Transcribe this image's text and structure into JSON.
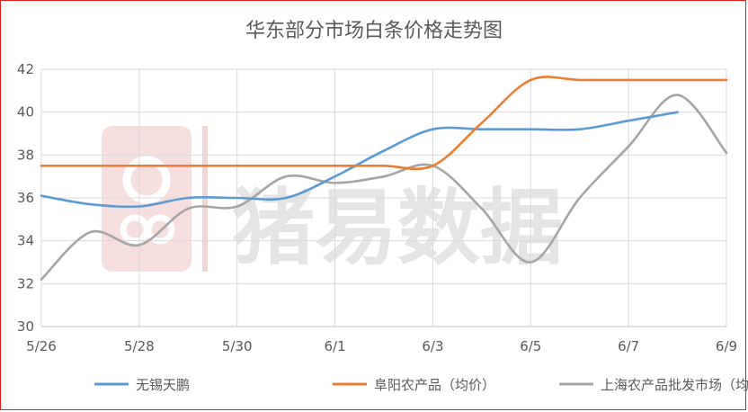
{
  "chart_data": {
    "type": "line",
    "title": "华东部分市场白条价格走势图",
    "xlabel": "",
    "ylabel": "",
    "watermark": "猪易数据",
    "x_ticks": [
      "5/26",
      "5/28",
      "5/30",
      "6/1",
      "6/3",
      "6/5",
      "6/7",
      "6/9"
    ],
    "y_ticks": [
      "30",
      "32",
      "34",
      "36",
      "38",
      "40",
      "42"
    ],
    "ylim": [
      30,
      42
    ],
    "grid": "horizontal",
    "legend_position": "bottom",
    "series": [
      {
        "name": "无锡天鹏",
        "color": "#5b9bd5",
        "x": [
          "5/26",
          "5/27",
          "5/28",
          "5/29",
          "5/30",
          "5/31",
          "6/1",
          "6/2",
          "6/3",
          "6/4",
          "6/5",
          "6/6",
          "6/7",
          "6/8"
        ],
        "values": [
          36.1,
          35.7,
          35.6,
          36.0,
          36.0,
          36.0,
          37.0,
          38.2,
          39.2,
          39.2,
          39.2,
          39.2,
          39.6,
          40.0
        ]
      },
      {
        "name": "阜阳农产品（均价）",
        "color": "#ed7d31",
        "x": [
          "5/26",
          "5/27",
          "5/28",
          "5/29",
          "5/30",
          "5/31",
          "6/1",
          "6/2",
          "6/3",
          "6/4",
          "6/5",
          "6/6",
          "6/7",
          "6/8",
          "6/9"
        ],
        "values": [
          37.5,
          37.5,
          37.5,
          37.5,
          37.5,
          37.5,
          37.5,
          37.5,
          37.5,
          39.5,
          41.5,
          41.5,
          41.5,
          41.5,
          41.5
        ]
      },
      {
        "name": "上海农产品批发市场（均价）",
        "color": "#a5a5a5",
        "x": [
          "5/26",
          "5/27",
          "5/28",
          "5/29",
          "5/30",
          "5/31",
          "6/1",
          "6/2",
          "6/3",
          "6/4",
          "6/5",
          "6/6",
          "6/7",
          "6/8",
          "6/9"
        ],
        "values": [
          32.2,
          34.4,
          33.8,
          35.5,
          35.6,
          37.0,
          36.7,
          37.0,
          37.5,
          35.5,
          33.0,
          36.0,
          38.4,
          40.8,
          38.1
        ]
      }
    ]
  }
}
